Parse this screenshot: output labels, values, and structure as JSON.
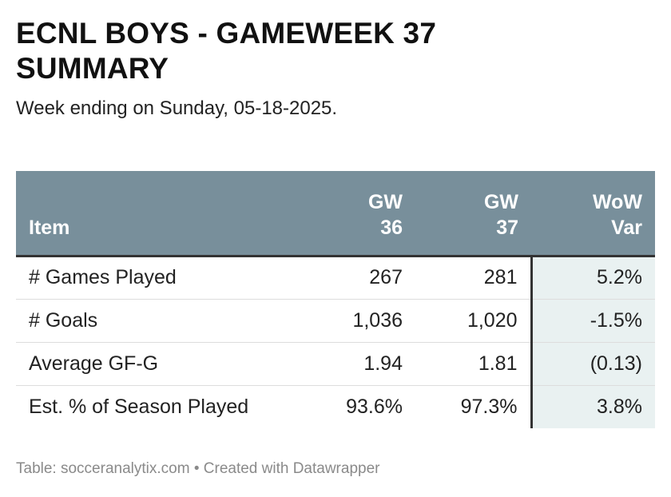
{
  "title": "ECNL BOYS - GAMEWEEK 37\nSUMMARY",
  "subtitle": "Week ending on Sunday, 05-18-2025.",
  "footer": {
    "source": "Table: socceranalytix.com",
    "separator": "•",
    "credit": "Created with Datawrapper"
  },
  "colors": {
    "header_bg": "#788f9b",
    "header_text": "#ffffff",
    "var_column_bg": "#e9f1f1"
  },
  "chart_data": {
    "type": "table",
    "columns": [
      {
        "label_line1": "Item",
        "label_line2": ""
      },
      {
        "label_line1": "GW",
        "label_line2": "36"
      },
      {
        "label_line1": "GW",
        "label_line2": "37"
      },
      {
        "label_line1": "WoW",
        "label_line2": "Var"
      }
    ],
    "rows": [
      {
        "item": "# Games Played",
        "gw36": "267",
        "gw37": "281",
        "wow_var": "5.2%"
      },
      {
        "item": "# Goals",
        "gw36": "1,036",
        "gw37": "1,020",
        "wow_var": "-1.5%"
      },
      {
        "item": "Average GF-G",
        "gw36": "1.94",
        "gw37": "1.81",
        "wow_var": "(0.13)"
      },
      {
        "item": "Est. % of Season Played",
        "gw36": "93.6%",
        "gw37": "97.3%",
        "wow_var": "3.8%"
      }
    ]
  }
}
